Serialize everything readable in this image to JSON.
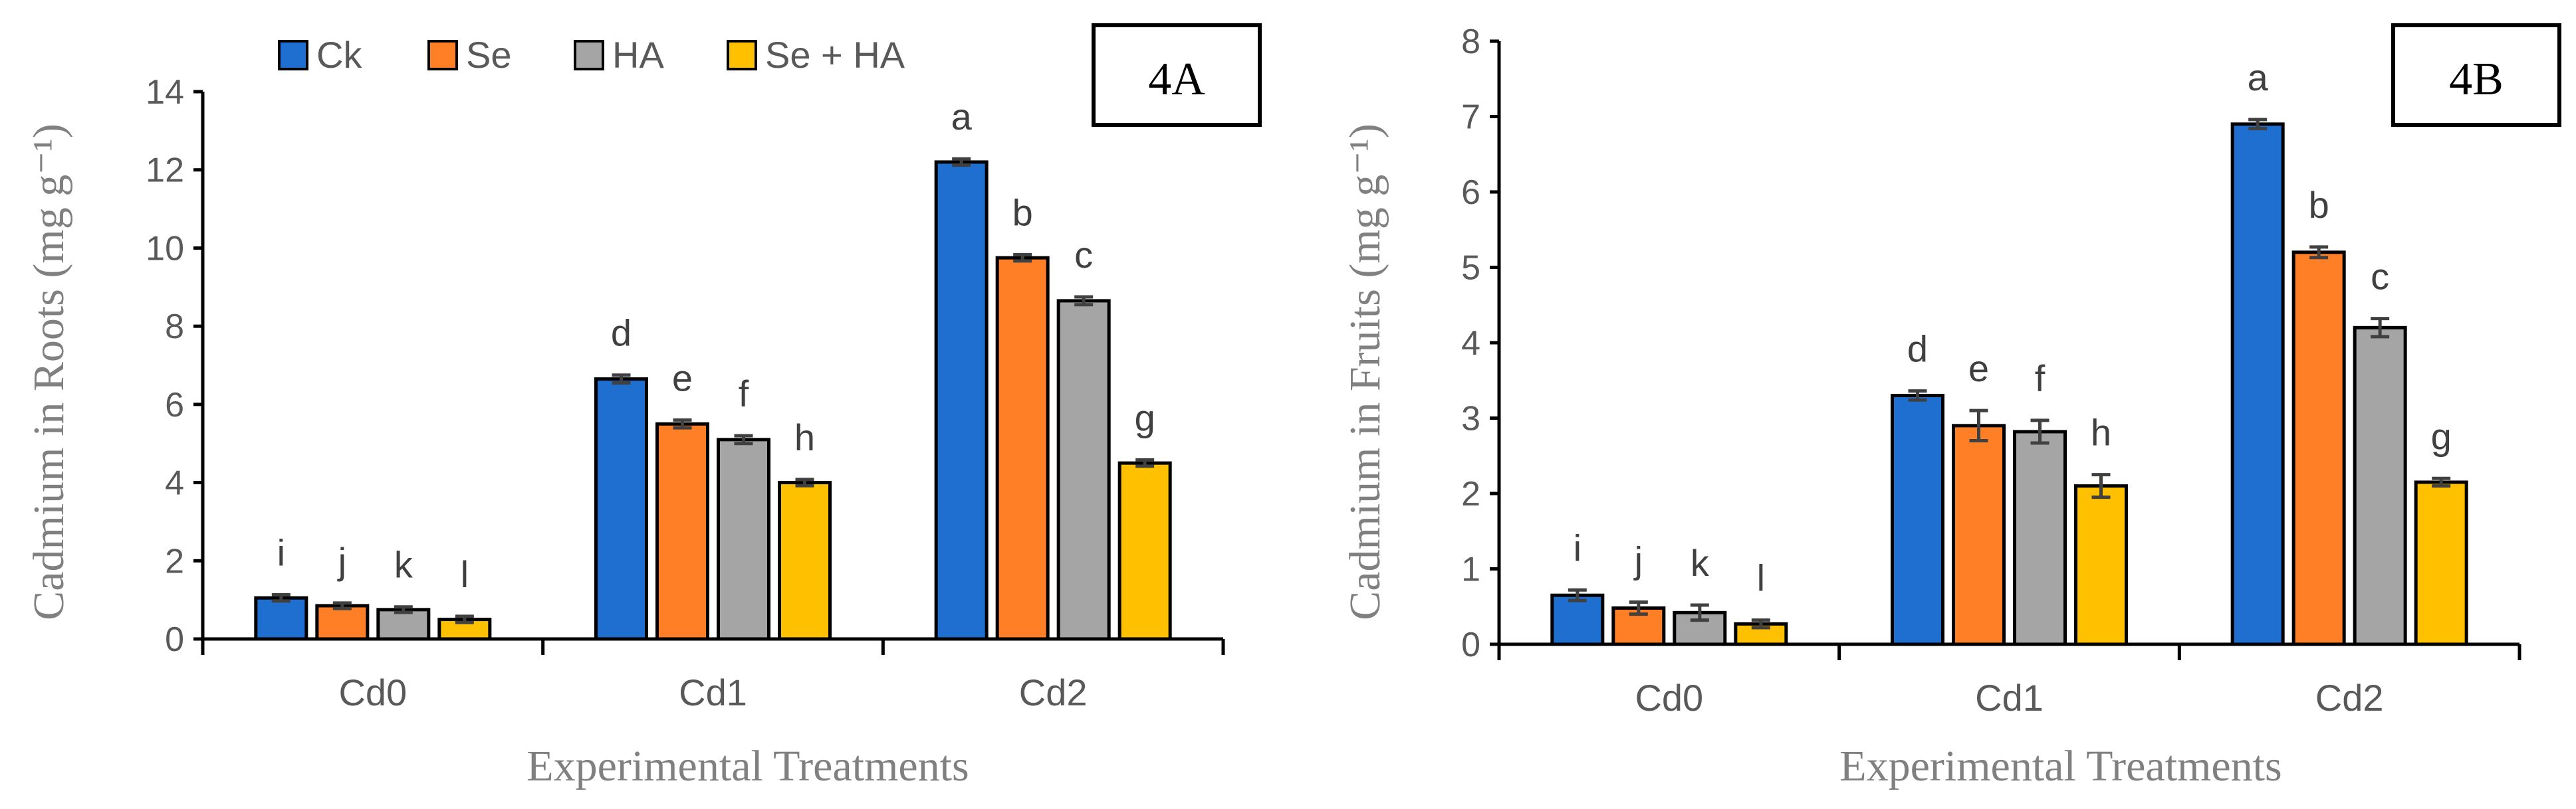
{
  "chart_data": [
    {
      "type": "bar",
      "panel_label": "4A",
      "title": "",
      "xlabel": "Experimental Treatments",
      "ylabel": "Cadmium in Roots (mg g⁻¹)",
      "ylim": [
        0,
        14
      ],
      "yticks": [
        0,
        2,
        4,
        6,
        8,
        10,
        12,
        14
      ],
      "categories": [
        "Cd0",
        "Cd1",
        "Cd2"
      ],
      "series": [
        {
          "name": "Ck",
          "values": [
            1.05,
            6.65,
            12.2
          ],
          "errors": [
            0.08,
            0.1,
            0.08
          ],
          "letters": [
            "i",
            "d",
            "a"
          ]
        },
        {
          "name": "Se",
          "values": [
            0.85,
            5.5,
            9.75
          ],
          "errors": [
            0.07,
            0.1,
            0.08
          ],
          "letters": [
            "j",
            "e",
            "b"
          ]
        },
        {
          "name": "HA",
          "values": [
            0.75,
            5.1,
            8.65
          ],
          "errors": [
            0.07,
            0.1,
            0.1
          ],
          "letters": [
            "k",
            "f",
            "c"
          ]
        },
        {
          "name": "Se + HA",
          "values": [
            0.5,
            4.0,
            4.5
          ],
          "errors": [
            0.08,
            0.08,
            0.08
          ],
          "letters": [
            "l",
            "h",
            "g"
          ]
        }
      ]
    },
    {
      "type": "bar",
      "panel_label": "4B",
      "title": "",
      "xlabel": "Experimental Treatments",
      "ylabel": "Cadmium in Fruits (mg g⁻¹)",
      "ylim": [
        0,
        8
      ],
      "yticks": [
        0,
        1,
        2,
        3,
        4,
        5,
        6,
        7,
        8
      ],
      "categories": [
        "Cd0",
        "Cd1",
        "Cd2"
      ],
      "series": [
        {
          "name": "Ck",
          "values": [
            0.65,
            3.3,
            6.9
          ],
          "errors": [
            0.07,
            0.06,
            0.06
          ],
          "letters": [
            "i",
            "d",
            "a"
          ]
        },
        {
          "name": "Se",
          "values": [
            0.48,
            2.9,
            5.2
          ],
          "errors": [
            0.08,
            0.2,
            0.07
          ],
          "letters": [
            "j",
            "e",
            "b"
          ]
        },
        {
          "name": "HA",
          "values": [
            0.42,
            2.82,
            4.2
          ],
          "errors": [
            0.1,
            0.15,
            0.12
          ],
          "letters": [
            "k",
            "f",
            "c"
          ]
        },
        {
          "name": "Se + HA",
          "values": [
            0.27,
            2.1,
            2.15
          ],
          "errors": [
            0.05,
            0.15,
            0.05
          ],
          "letters": [
            "l",
            "h",
            "g"
          ]
        }
      ]
    }
  ],
  "legend": {
    "items": [
      {
        "label": "Ck",
        "color": "#1F6FD0"
      },
      {
        "label": "Se",
        "color": "#FF7F27"
      },
      {
        "label": "HA",
        "color": "#A5A5A5"
      },
      {
        "label": "Se + HA",
        "color": "#FFC000"
      }
    ]
  }
}
